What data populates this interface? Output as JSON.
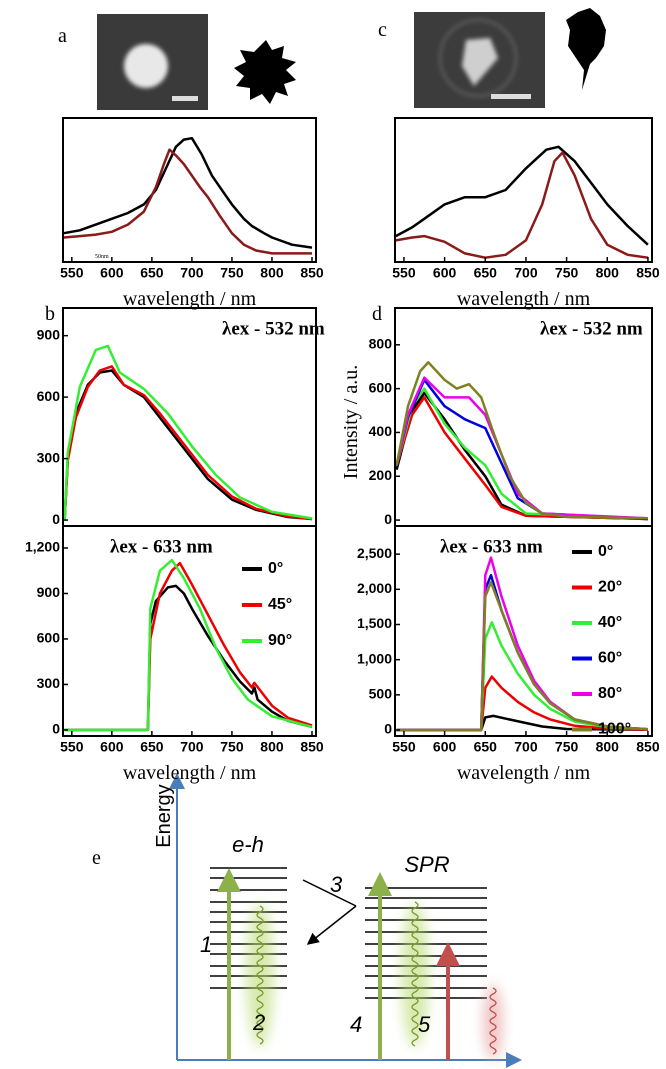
{
  "chart_data": [
    {
      "type": "line",
      "label": "a",
      "x_label": "wavelength / nm",
      "annotation": "50nm",
      "xlim": [
        539,
        855
      ],
      "xticks": [
        550,
        600,
        650,
        700,
        750,
        800,
        850
      ],
      "ylim": [
        0,
        1
      ],
      "series": [
        {
          "color": "#000000",
          "x": [
            540,
            560,
            580,
            600,
            620,
            640,
            655,
            670,
            680,
            690,
            700,
            712,
            725,
            740,
            750,
            765,
            775,
            790,
            800,
            825,
            850
          ],
          "values": [
            0.2,
            0.22,
            0.26,
            0.3,
            0.34,
            0.4,
            0.5,
            0.68,
            0.8,
            0.85,
            0.86,
            0.75,
            0.6,
            0.48,
            0.4,
            0.3,
            0.25,
            0.2,
            0.17,
            0.12,
            0.1
          ]
        },
        {
          "color": "#8b1a1a",
          "x": [
            540,
            560,
            580,
            600,
            620,
            640,
            655,
            665,
            672,
            680,
            690,
            700,
            710,
            720,
            735,
            750,
            765,
            780,
            800,
            825,
            850
          ],
          "values": [
            0.17,
            0.18,
            0.19,
            0.21,
            0.26,
            0.35,
            0.52,
            0.68,
            0.78,
            0.74,
            0.68,
            0.6,
            0.52,
            0.45,
            0.32,
            0.2,
            0.12,
            0.08,
            0.06,
            0.06,
            0.06
          ]
        }
      ]
    },
    {
      "type": "line",
      "label": "c",
      "x_label": "wavelength / nm",
      "xlim": [
        539,
        855
      ],
      "xticks": [
        550,
        600,
        650,
        700,
        750,
        800,
        850
      ],
      "ylim": [
        0,
        1
      ],
      "series": [
        {
          "color": "#000000",
          "x": [
            540,
            560,
            575,
            600,
            625,
            650,
            675,
            700,
            725,
            740,
            760,
            780,
            800,
            825,
            850
          ],
          "values": [
            0.18,
            0.24,
            0.3,
            0.4,
            0.45,
            0.45,
            0.5,
            0.65,
            0.78,
            0.8,
            0.7,
            0.55,
            0.4,
            0.25,
            0.12
          ]
        },
        {
          "color": "#8b1a1a",
          "x": [
            540,
            560,
            575,
            600,
            625,
            650,
            675,
            700,
            720,
            735,
            745,
            760,
            780,
            800,
            825,
            850
          ],
          "values": [
            0.15,
            0.17,
            0.18,
            0.14,
            0.06,
            0.03,
            0.05,
            0.15,
            0.4,
            0.7,
            0.76,
            0.6,
            0.3,
            0.12,
            0.05,
            0.03
          ]
        }
      ]
    },
    {
      "type": "line",
      "label": "b",
      "annotation": "λex - 532 nm",
      "xlim": [
        539,
        855
      ],
      "ylim": [
        -29,
        1035
      ],
      "yticks": [
        0,
        300,
        600,
        900
      ],
      "series": [
        {
          "color": "#000000",
          "x": [
            541,
            545,
            555,
            570,
            585,
            600,
            615,
            640,
            660,
            680,
            700,
            720,
            750,
            780,
            820,
            850
          ],
          "values": [
            0,
            300,
            520,
            660,
            720,
            730,
            660,
            600,
            500,
            400,
            300,
            200,
            100,
            50,
            15,
            5
          ]
        },
        {
          "color": "#ee0000",
          "x": [
            541,
            545,
            555,
            570,
            585,
            600,
            615,
            640,
            660,
            680,
            700,
            720,
            750,
            780,
            820,
            850
          ],
          "values": [
            0,
            290,
            500,
            650,
            730,
            750,
            660,
            610,
            520,
            420,
            320,
            220,
            115,
            55,
            18,
            5
          ]
        },
        {
          "color": "#33ee33",
          "x": [
            541,
            545,
            560,
            580,
            595,
            610,
            640,
            670,
            700,
            730,
            760,
            800,
            850
          ],
          "values": [
            0,
            330,
            650,
            830,
            850,
            720,
            640,
            520,
            360,
            220,
            110,
            40,
            8
          ]
        }
      ]
    },
    {
      "type": "line",
      "annotation": "λex - 633 nm",
      "x_label": "wavelength / nm",
      "xlim": [
        539,
        855
      ],
      "xticks": [
        550,
        600,
        650,
        700,
        750,
        800,
        850
      ],
      "ylim": [
        -40,
        1345
      ],
      "yticks": [
        0,
        300,
        600,
        900,
        {
          "value": 1200,
          "label": "1,200"
        }
      ],
      "series": [
        {
          "name": "0°",
          "color": "#000000",
          "x": [
            541,
            645,
            648,
            655,
            670,
            680,
            690,
            700,
            720,
            740,
            760,
            775,
            778,
            782,
            800,
            820,
            850
          ],
          "values": [
            0,
            0,
            700,
            850,
            940,
            950,
            900,
            800,
            620,
            460,
            320,
            240,
            280,
            200,
            120,
            60,
            20
          ]
        },
        {
          "name": "45°",
          "color": "#ee0000",
          "x": [
            541,
            645,
            648,
            660,
            675,
            685,
            700,
            720,
            740,
            760,
            775,
            778,
            800,
            820,
            850
          ],
          "values": [
            0,
            0,
            600,
            900,
            1050,
            1100,
            960,
            760,
            560,
            380,
            280,
            310,
            160,
            80,
            30
          ]
        },
        {
          "name": "90°",
          "color": "#33ee33",
          "x": [
            541,
            645,
            648,
            660,
            675,
            690,
            710,
            730,
            750,
            770,
            800,
            850
          ],
          "values": [
            0,
            0,
            800,
            1050,
            1120,
            1000,
            800,
            540,
            340,
            200,
            90,
            20
          ]
        }
      ]
    },
    {
      "type": "line",
      "label": "d",
      "annotation": "λex - 532 nm",
      "y_label": "Intensity / a.u.",
      "xlim": [
        539,
        855
      ],
      "ylim": [
        -27,
        968
      ],
      "yticks": [
        0,
        200,
        400,
        600,
        800
      ],
      "series": [
        {
          "color": "#000000",
          "x": [
            541,
            560,
            575,
            600,
            625,
            650,
            670,
            700,
            850
          ],
          "values": [
            230,
            500,
            580,
            460,
            320,
            200,
            70,
            20,
            5
          ]
        },
        {
          "color": "#ee0000",
          "x": [
            541,
            560,
            575,
            600,
            625,
            650,
            670,
            700,
            850
          ],
          "values": [
            250,
            480,
            560,
            400,
            280,
            160,
            60,
            20,
            5
          ]
        },
        {
          "color": "#33ee33",
          "x": [
            541,
            560,
            575,
            600,
            625,
            650,
            670,
            700,
            850
          ],
          "values": [
            250,
            520,
            600,
            440,
            330,
            250,
            120,
            30,
            5
          ]
        },
        {
          "color": "#0000e0",
          "x": [
            541,
            555,
            575,
            600,
            625,
            650,
            670,
            690,
            720,
            850
          ],
          "values": [
            250,
            470,
            640,
            520,
            460,
            420,
            260,
            100,
            30,
            5
          ]
        },
        {
          "color": "#ee00ee",
          "x": [
            541,
            555,
            575,
            600,
            630,
            650,
            670,
            690,
            720,
            850
          ],
          "values": [
            250,
            480,
            650,
            560,
            560,
            480,
            300,
            120,
            30,
            8
          ]
        },
        {
          "color": "#808020",
          "x": [
            541,
            555,
            570,
            580,
            600,
            615,
            630,
            645,
            660,
            680,
            700,
            720,
            750,
            850
          ],
          "values": [
            250,
            520,
            680,
            720,
            640,
            600,
            620,
            560,
            400,
            200,
            80,
            30,
            15,
            8
          ]
        }
      ]
    },
    {
      "type": "line",
      "annotation": "λex - 633 nm",
      "x_label": "wavelength / nm",
      "xlim": [
        539,
        855
      ],
      "xticks": [
        550,
        600,
        650,
        700,
        750,
        800,
        850
      ],
      "ylim": [
        -85,
        2900
      ],
      "yticks": [
        0,
        500,
        {
          "value": 1000,
          "label": "1,000"
        },
        {
          "value": 1500,
          "label": "1,500"
        },
        {
          "value": 2000,
          "label": "2,000"
        },
        {
          "value": 2500,
          "label": "2,500"
        }
      ],
      "series": [
        {
          "name": "0°",
          "color": "#000000",
          "x": [
            541,
            645,
            650,
            660,
            680,
            700,
            720,
            750,
            850
          ],
          "values": [
            0,
            0,
            180,
            200,
            150,
            100,
            50,
            15,
            5
          ]
        },
        {
          "name": "20°",
          "color": "#ee0000",
          "x": [
            541,
            645,
            650,
            658,
            670,
            690,
            710,
            730,
            760,
            800,
            850
          ],
          "values": [
            0,
            0,
            600,
            760,
            600,
            400,
            250,
            150,
            60,
            20,
            5
          ]
        },
        {
          "name": "40°",
          "color": "#33ee33",
          "x": [
            541,
            645,
            650,
            658,
            670,
            690,
            710,
            730,
            760,
            800,
            850
          ],
          "values": [
            0,
            0,
            1300,
            1530,
            1200,
            800,
            500,
            300,
            120,
            40,
            10
          ]
        },
        {
          "name": "60°",
          "color": "#0000e0",
          "x": [
            541,
            645,
            650,
            657,
            670,
            690,
            710,
            730,
            760,
            800,
            850
          ],
          "values": [
            0,
            0,
            2000,
            2200,
            1700,
            1100,
            650,
            380,
            150,
            50,
            10
          ]
        },
        {
          "name": "80°",
          "color": "#ee00ee",
          "x": [
            541,
            645,
            650,
            657,
            670,
            690,
            710,
            730,
            760,
            800,
            850
          ],
          "values": [
            0,
            0,
            2200,
            2450,
            1900,
            1200,
            700,
            400,
            150,
            50,
            10
          ]
        },
        {
          "name": "100°",
          "color": "#808020",
          "x": [
            541,
            645,
            650,
            657,
            670,
            690,
            710,
            730,
            760,
            800,
            850
          ],
          "values": [
            0,
            0,
            1900,
            2100,
            1700,
            1100,
            650,
            380,
            150,
            50,
            10
          ]
        }
      ]
    }
  ],
  "diagram": {
    "label": "e",
    "axis_label": "Energy",
    "left_band": "e-h",
    "right_band": "SPR",
    "steps": [
      "1",
      "2",
      "3",
      "4",
      "5"
    ]
  }
}
